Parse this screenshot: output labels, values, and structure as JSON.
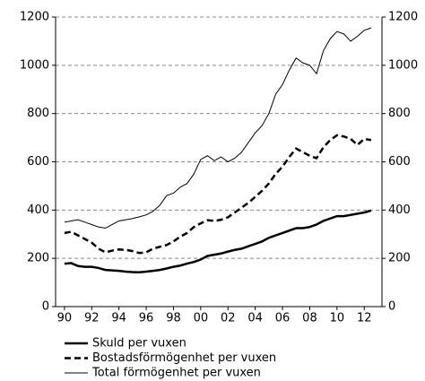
{
  "chart_data": {
    "type": "line",
    "x": [
      1990,
      1990.5,
      1991,
      1991.5,
      1992,
      1992.5,
      1993,
      1993.5,
      1994,
      1994.5,
      1995,
      1995.5,
      1996,
      1996.5,
      1997,
      1997.5,
      1998,
      1998.5,
      1999,
      1999.5,
      2000,
      2000.5,
      2001,
      2001.5,
      2002,
      2002.5,
      2003,
      2003.5,
      2004,
      2004.5,
      2005,
      2005.5,
      2006,
      2006.5,
      2007,
      2007.5,
      2008,
      2008.5,
      2009,
      2009.5,
      2010,
      2010.5,
      2011,
      2011.5,
      2012,
      2012.5
    ],
    "series": [
      {
        "name": "Skuld per vuxen",
        "color": "#000000",
        "line_style": "solid",
        "line_width": 2.5,
        "values": [
          178,
          180,
          168,
          165,
          165,
          160,
          152,
          150,
          148,
          145,
          143,
          142,
          145,
          148,
          152,
          158,
          165,
          170,
          178,
          185,
          195,
          210,
          215,
          220,
          228,
          235,
          240,
          250,
          260,
          270,
          285,
          295,
          305,
          315,
          325,
          325,
          330,
          340,
          355,
          365,
          375,
          375,
          380,
          385,
          390,
          398
        ]
      },
      {
        "name": "Bostadsförmögenhet per vuxen",
        "color": "#000000",
        "line_style": "dashed",
        "line_width": 2.5,
        "values": [
          305,
          310,
          295,
          280,
          265,
          240,
          225,
          232,
          237,
          235,
          230,
          222,
          225,
          240,
          248,
          255,
          270,
          290,
          305,
          330,
          345,
          358,
          355,
          360,
          370,
          390,
          410,
          430,
          455,
          480,
          510,
          550,
          580,
          620,
          655,
          640,
          625,
          615,
          660,
          690,
          710,
          705,
          695,
          670,
          695,
          690
        ]
      },
      {
        "name": "Total förmögenhet per vuxen",
        "color": "#000000",
        "line_style": "solid",
        "line_width": 1,
        "values": [
          350,
          355,
          360,
          350,
          340,
          330,
          325,
          340,
          355,
          360,
          365,
          372,
          380,
          395,
          420,
          460,
          470,
          495,
          510,
          550,
          610,
          625,
          605,
          620,
          600,
          615,
          640,
          680,
          720,
          750,
          800,
          880,
          920,
          980,
          1030,
          1010,
          1000,
          965,
          1060,
          1110,
          1140,
          1130,
          1100,
          1120,
          1145,
          1155
        ]
      }
    ],
    "xlim": [
      1989.35,
      2013.3
    ],
    "xticks": [
      {
        "value": 1990,
        "label": "90"
      },
      {
        "value": 1992,
        "label": "92"
      },
      {
        "value": 1994,
        "label": "94"
      },
      {
        "value": 1996,
        "label": "96"
      },
      {
        "value": 1998,
        "label": "98"
      },
      {
        "value": 2000,
        "label": "00"
      },
      {
        "value": 2002,
        "label": "02"
      },
      {
        "value": 2004,
        "label": "04"
      },
      {
        "value": 2006,
        "label": "06"
      },
      {
        "value": 2008,
        "label": "08"
      },
      {
        "value": 2010,
        "label": "10"
      },
      {
        "value": 2012,
        "label": "12"
      }
    ],
    "ylim": [
      0,
      1200
    ],
    "yticks": [
      0,
      200,
      400,
      600,
      800,
      1000,
      1200
    ],
    "grid": true,
    "right_axis_labels": true,
    "legend": "bottom"
  }
}
